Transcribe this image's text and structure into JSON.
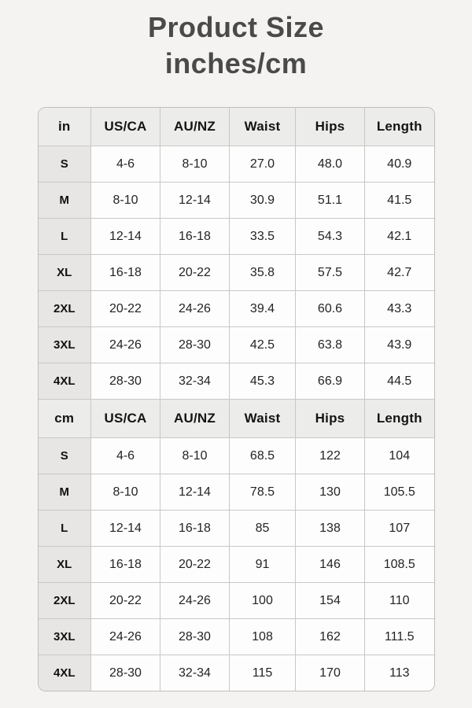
{
  "title": {
    "line1": "Product Size",
    "line2": "inches/cm"
  },
  "chart_data": {
    "type": "table",
    "title": "Product Size inches/cm",
    "sections": [
      {
        "unit": "in",
        "headers": [
          "in",
          "US/CA",
          "AU/NZ",
          "Waist",
          "Hips",
          "Length"
        ],
        "rows": [
          [
            "S",
            "4-6",
            "8-10",
            "27.0",
            "48.0",
            "40.9"
          ],
          [
            "M",
            "8-10",
            "12-14",
            "30.9",
            "51.1",
            "41.5"
          ],
          [
            "L",
            "12-14",
            "16-18",
            "33.5",
            "54.3",
            "42.1"
          ],
          [
            "XL",
            "16-18",
            "20-22",
            "35.8",
            "57.5",
            "42.7"
          ],
          [
            "2XL",
            "20-22",
            "24-26",
            "39.4",
            "60.6",
            "43.3"
          ],
          [
            "3XL",
            "24-26",
            "28-30",
            "42.5",
            "63.8",
            "43.9"
          ],
          [
            "4XL",
            "28-30",
            "32-34",
            "45.3",
            "66.9",
            "44.5"
          ]
        ]
      },
      {
        "unit": "cm",
        "headers": [
          "cm",
          "US/CA",
          "AU/NZ",
          "Waist",
          "Hips",
          "Length"
        ],
        "rows": [
          [
            "S",
            "4-6",
            "8-10",
            "68.5",
            "122",
            "104"
          ],
          [
            "M",
            "8-10",
            "12-14",
            "78.5",
            "130",
            "105.5"
          ],
          [
            "L",
            "12-14",
            "16-18",
            "85",
            "138",
            "107"
          ],
          [
            "XL",
            "16-18",
            "20-22",
            "91",
            "146",
            "108.5"
          ],
          [
            "2XL",
            "20-22",
            "24-26",
            "100",
            "154",
            "110"
          ],
          [
            "3XL",
            "24-26",
            "28-30",
            "108",
            "162",
            "111.5"
          ],
          [
            "4XL",
            "28-30",
            "32-34",
            "115",
            "170",
            "113"
          ]
        ]
      }
    ]
  },
  "colors": {
    "page_background": "#f4f3f1",
    "header_row_background": "#ececea",
    "size_label_background": "#e7e6e4",
    "cell_background": "#fdfdfd",
    "border": "#c9c8c6",
    "title_text": "#4a4a4a",
    "table_text": "#242424"
  }
}
